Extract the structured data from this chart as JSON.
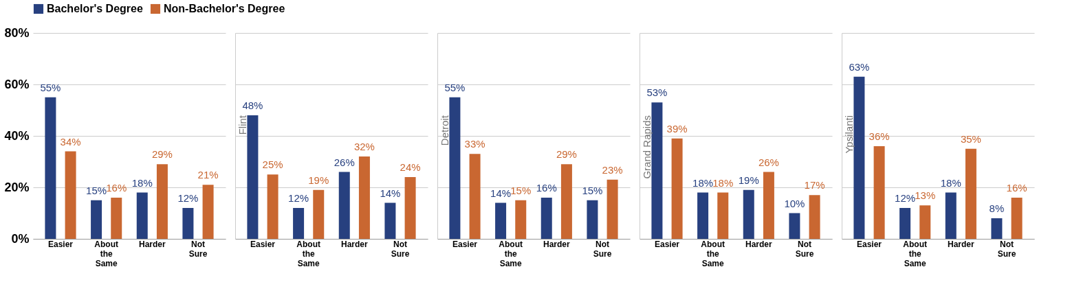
{
  "chart_data": [
    {
      "type": "bar",
      "categories": [
        "Easier",
        "About the Same",
        "Harder",
        "Not Sure"
      ],
      "ylim": [
        0,
        80
      ],
      "yticks": [
        {
          "value": 0,
          "label": "0%"
        },
        {
          "value": 20,
          "label": "20%"
        },
        {
          "value": 40,
          "label": "40%"
        },
        {
          "value": 60,
          "label": "60%"
        },
        {
          "value": 80,
          "label": "80%"
        }
      ],
      "grid": "y",
      "legend": "top",
      "series": [
        {
          "name": "Bachelor's Degree",
          "color": "#27407f",
          "values": [
            55,
            15,
            18,
            12
          ],
          "value_labels": [
            "55%",
            "15%",
            "18%",
            "12%"
          ]
        },
        {
          "name": "Non-Bachelor's Degree",
          "color": "#c96731",
          "values": [
            34,
            16,
            29,
            21
          ],
          "value_labels": [
            "34%",
            "16%",
            "29%",
            "21%"
          ]
        }
      ]
    },
    {
      "type": "bar",
      "title": "Flint",
      "categories": [
        "Easier",
        "About the Same",
        "Harder",
        "Not Sure"
      ],
      "ylim": [
        0,
        80
      ],
      "tick_labels": "x",
      "grid": "y",
      "series": [
        {
          "name": "Bachelor's Degree",
          "color": "#27407f",
          "values": [
            48,
            12,
            26,
            14
          ],
          "value_labels": [
            "48%",
            "12%",
            "26%",
            "14%"
          ]
        },
        {
          "name": "Non-Bachelor's Degree",
          "color": "#c96731",
          "values": [
            25,
            19,
            32,
            24
          ],
          "value_labels": [
            "25%",
            "19%",
            "32%",
            "24%"
          ]
        }
      ]
    },
    {
      "type": "bar",
      "title": "Detroit",
      "categories": [
        "Easier",
        "About the Same",
        "Harder",
        "Not Sure"
      ],
      "ylim": [
        0,
        80
      ],
      "tick_labels": "x",
      "grid": "y",
      "series": [
        {
          "name": "Bachelor's Degree",
          "color": "#27407f",
          "values": [
            55,
            14,
            16,
            15
          ],
          "value_labels": [
            "55%",
            "14%",
            "16%",
            "15%"
          ]
        },
        {
          "name": "Non-Bachelor's Degree",
          "color": "#c96731",
          "values": [
            33,
            15,
            29,
            23
          ],
          "value_labels": [
            "33%",
            "15%",
            "29%",
            "23%"
          ]
        }
      ]
    },
    {
      "type": "bar",
      "title": "Grand Rapids",
      "categories": [
        "Easier",
        "About the Same",
        "Harder",
        "Not Sure"
      ],
      "ylim": [
        0,
        80
      ],
      "tick_labels": "x",
      "grid": "y",
      "series": [
        {
          "name": "Bachelor's Degree",
          "color": "#27407f",
          "values": [
            53,
            18,
            19,
            10
          ],
          "value_labels": [
            "53%",
            "18%",
            "19%",
            "10%"
          ]
        },
        {
          "name": "Non-Bachelor's Degree",
          "color": "#c96731",
          "values": [
            39,
            18,
            26,
            17
          ],
          "value_labels": [
            "39%",
            "18%",
            "26%",
            "17%"
          ]
        }
      ]
    },
    {
      "type": "bar",
      "title": "Ypsilanti",
      "categories": [
        "Easier",
        "About the Same",
        "Harder",
        "Not Sure"
      ],
      "ylim": [
        0,
        80
      ],
      "tick_labels": "x",
      "grid": "y",
      "series": [
        {
          "name": "Bachelor's Degree",
          "color": "#27407f",
          "values": [
            63,
            12,
            18,
            8
          ],
          "value_labels": [
            "63%",
            "12%",
            "18%",
            "8%"
          ]
        },
        {
          "name": "Non-Bachelor's Degree",
          "color": "#c96731",
          "values": [
            36,
            13,
            35,
            16
          ],
          "value_labels": [
            "36%",
            "13%",
            "35%",
            "16%"
          ]
        }
      ]
    }
  ]
}
